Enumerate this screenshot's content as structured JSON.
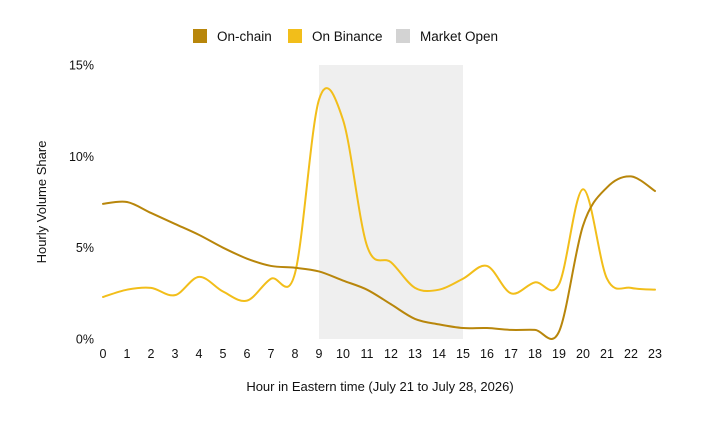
{
  "chart_data": {
    "type": "line",
    "xlabel": "Hour in Eastern time (July 21 to July 28, 2026)",
    "ylabel": "Hourly Volume Share",
    "x": [
      0,
      1,
      2,
      3,
      4,
      5,
      6,
      7,
      8,
      9,
      10,
      11,
      12,
      13,
      14,
      15,
      16,
      17,
      18,
      19,
      20,
      21,
      22,
      23
    ],
    "xlim": [
      0,
      23
    ],
    "ylim": [
      0,
      15
    ],
    "yticks": [
      0,
      5,
      10,
      15
    ],
    "ytick_labels": [
      "0%",
      "5%",
      "10%",
      "15%"
    ],
    "xtick_labels": [
      "0",
      "1",
      "2",
      "3",
      "4",
      "5",
      "6",
      "7",
      "8",
      "9",
      "10",
      "11",
      "12",
      "13",
      "14",
      "15",
      "16",
      "17",
      "18",
      "19",
      "20",
      "21",
      "22",
      "23"
    ],
    "grid": false,
    "legend_position": "top",
    "legend": [
      {
        "label": "On-chain",
        "color": "#b8860b",
        "kind": "series"
      },
      {
        "label": "On Binance",
        "color": "#f2be1a",
        "kind": "series"
      },
      {
        "label": "Market Open",
        "color": "#d3d3d3",
        "kind": "band"
      }
    ],
    "band": {
      "label": "Market Open",
      "x_start": 9,
      "x_end": 15,
      "y_top": 15,
      "color": "#efefef"
    },
    "series": [
      {
        "name": "On-chain",
        "color": "#b8860b",
        "values": [
          7.4,
          7.5,
          6.9,
          6.3,
          5.7,
          5.0,
          4.4,
          4.0,
          3.9,
          3.7,
          3.2,
          2.7,
          1.9,
          1.1,
          0.8,
          0.6,
          0.6,
          0.5,
          0.5,
          0.4,
          6.2,
          8.3,
          8.9,
          8.1
        ]
      },
      {
        "name": "On Binance",
        "color": "#f2be1a",
        "values": [
          2.3,
          2.7,
          2.8,
          2.4,
          3.4,
          2.6,
          2.1,
          3.3,
          3.6,
          13.1,
          12.0,
          5.1,
          4.2,
          2.8,
          2.7,
          3.3,
          4.0,
          2.5,
          3.1,
          3.0,
          8.2,
          3.3,
          2.8,
          2.7
        ]
      }
    ]
  }
}
